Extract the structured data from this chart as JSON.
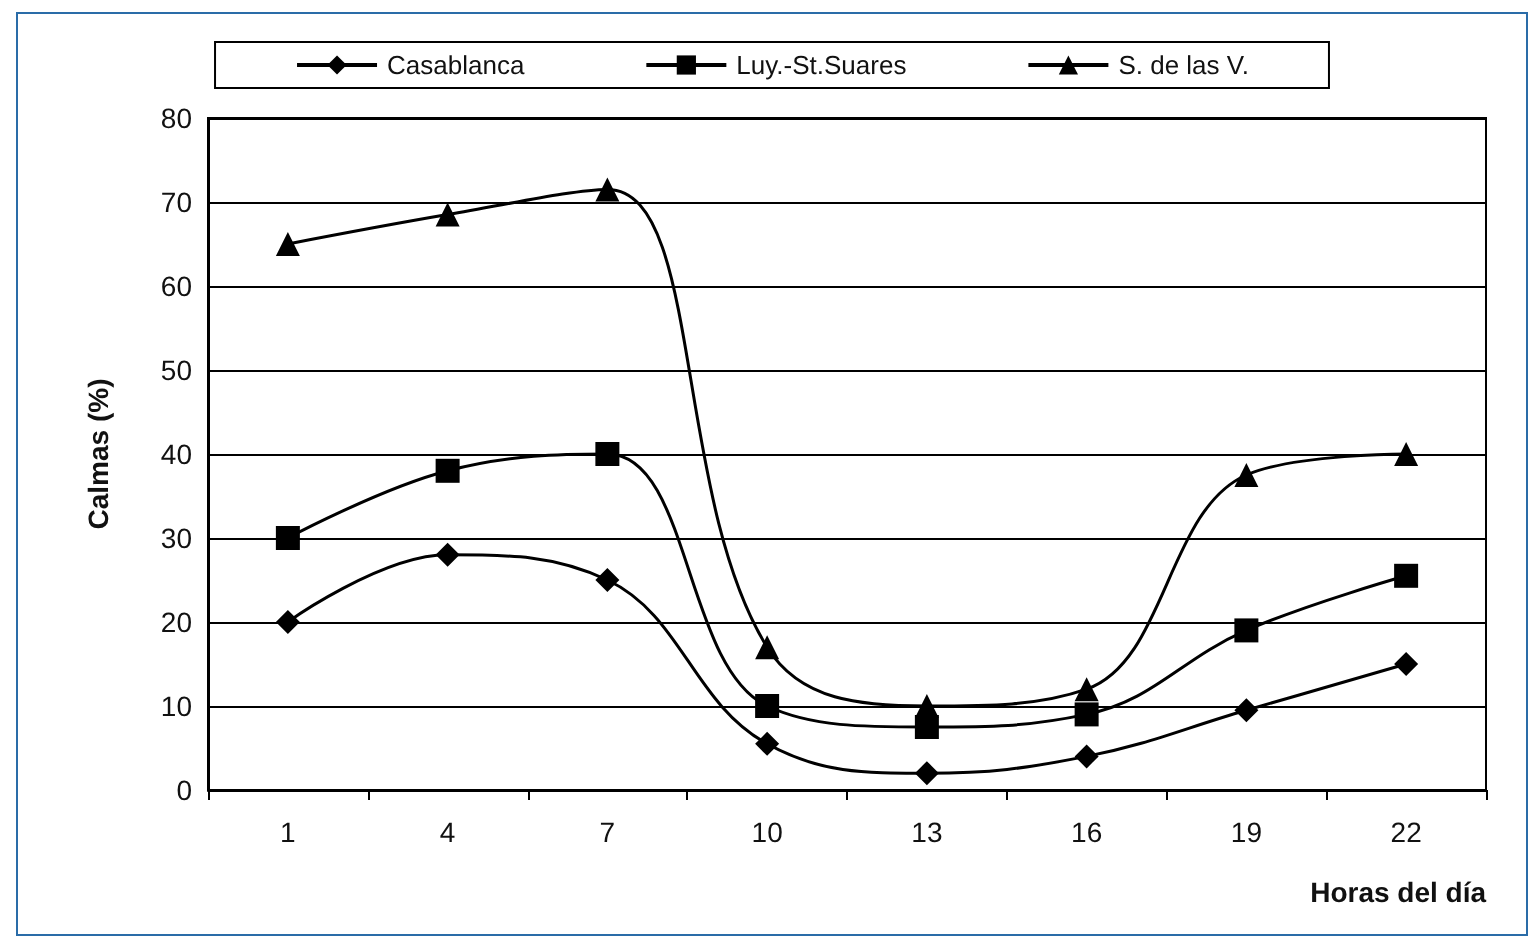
{
  "chart_data": {
    "type": "line",
    "xlabel": "Horas del día",
    "ylabel": "Calmas (%)",
    "categories": [
      "1",
      "4",
      "7",
      "10",
      "13",
      "16",
      "19",
      "22"
    ],
    "series": [
      {
        "name": "Casablanca",
        "color": "#000000",
        "marker": "diamond",
        "values": [
          20,
          28,
          25,
          5.5,
          2,
          4,
          9.5,
          15
        ]
      },
      {
        "name": "Luy.-St.Suares",
        "color": "#000000",
        "marker": "square",
        "values": [
          30,
          38,
          40,
          10,
          7.5,
          9,
          19,
          25.5
        ]
      },
      {
        "name": "S. de las V.",
        "color": "#000000",
        "marker": "triangle",
        "values": [
          65,
          68.5,
          71.5,
          17,
          10,
          12,
          37.5,
          40
        ]
      }
    ],
    "ylim": [
      0,
      80
    ],
    "yticks": [
      0,
      10,
      20,
      30,
      40,
      50,
      60,
      70,
      80
    ],
    "grid": "y",
    "legend": "top",
    "line_style": "solid"
  }
}
